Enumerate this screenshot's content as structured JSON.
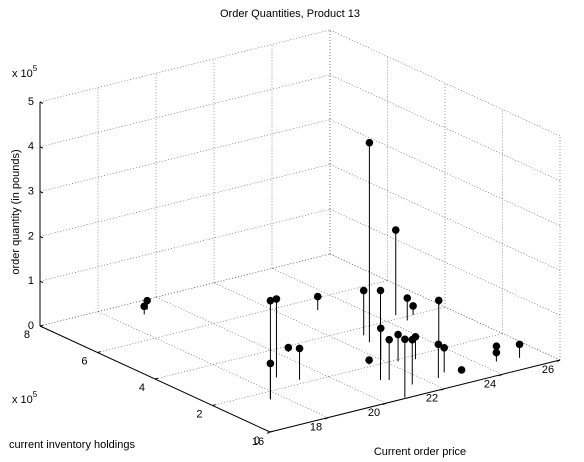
{
  "chart_data": {
    "type": "stem3",
    "title": "Order Quantities, Product 13",
    "xlabel": "Current order price",
    "ylabel": "current inventory holdings",
    "zlabel": "order quantity (in pounds)",
    "y_multiplier": {
      "base": "x 10",
      "exponent": "5"
    },
    "z_multiplier": {
      "base": "x 10",
      "exponent": "5"
    },
    "color": "#000000",
    "grid": true,
    "xlim": [
      16,
      26
    ],
    "xticks": [
      16,
      18,
      20,
      22,
      24,
      26
    ],
    "ylim": [
      0,
      8
    ],
    "yticks": [
      0,
      2,
      4,
      6,
      8
    ],
    "zlim": [
      0,
      5
    ],
    "zticks": [
      0,
      1,
      2,
      3,
      4,
      5
    ],
    "x": [
      18.9,
      19.2,
      17.6,
      18.8,
      17.6,
      20.3,
      19.2,
      23.0,
      22.6,
      22.8,
      21.0,
      24.5,
      21.5,
      22.0,
      21.2,
      22.3,
      20.7,
      21.5,
      24.5,
      24.9,
      22.8,
      24.0,
      22.4,
      22.8,
      23.2,
      24.7,
      24.5,
      25.2
    ],
    "y": [
      7.3,
      7.5,
      1.6,
      2.6,
      1.6,
      3.7,
      2.2,
      5.4,
      3.2,
      3.6,
      1.2,
      4.2,
      2.1,
      2.2,
      1.1,
      1.9,
      0.05,
      0.6,
      3.8,
      4.0,
      1.8,
      2.2,
      0.6,
      0.8,
      0.6,
      0.9,
      0.7,
      0.6
    ],
    "z": [
      0.18,
      0.2,
      2.2,
      1.75,
      0.8,
      0.1,
      0.7,
      0.3,
      4.45,
      1.0,
      2.0,
      1.9,
      0.1,
      0.7,
      0.9,
      0.6,
      1.3,
      1.0,
      0.5,
      0.2,
      0.5,
      1.0,
      0.75,
      0.55,
      0.05,
      0.25,
      0.2,
      0.3
    ]
  }
}
